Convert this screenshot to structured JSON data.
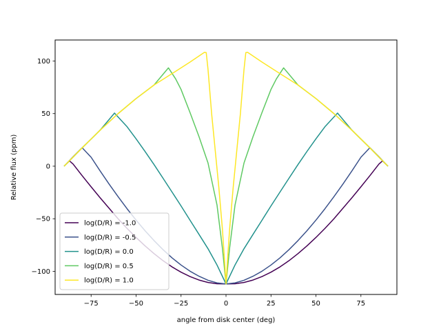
{
  "chart_data": {
    "type": "line",
    "title": "",
    "xlabel": "angle from disk center (deg)",
    "ylabel": "Relative flux (ppm)",
    "xlim": [
      -95,
      95
    ],
    "ylim": [
      -122,
      120
    ],
    "xticks": [
      -75,
      -50,
      -25,
      0,
      25,
      50,
      75
    ],
    "xtick_labels": [
      "−75",
      "−50",
      "−25",
      "0",
      "25",
      "50",
      "75"
    ],
    "yticks": [
      -100,
      -50,
      0,
      50,
      100
    ],
    "ytick_labels": [
      "−100",
      "−50",
      "0",
      "50",
      "100"
    ],
    "grid": false,
    "legend_position": "lower-left",
    "series": [
      {
        "name": "log(D/R) = -1.0",
        "color": "#440154",
        "x": [
          -90,
          -87,
          -85,
          -80,
          -75,
          -70,
          -65,
          -60,
          -55,
          -50,
          -45,
          -40,
          -35,
          -30,
          -25,
          -20,
          -15,
          -10,
          -5,
          0,
          5,
          10,
          15,
          20,
          25,
          30,
          35,
          40,
          45,
          50,
          55,
          60,
          65,
          70,
          75,
          80,
          85,
          87,
          90
        ],
        "y": [
          0,
          5,
          2,
          -9,
          -19.6,
          -30,
          -40,
          -50,
          -59.2,
          -67.8,
          -75.8,
          -83.2,
          -89.9,
          -95.8,
          -100.8,
          -105,
          -108.3,
          -110.6,
          -111.8,
          -112,
          -111.8,
          -110.6,
          -108.3,
          -105,
          -100.8,
          -95.8,
          -89.9,
          -83.2,
          -75.8,
          -67.8,
          -59.2,
          -50,
          -40,
          -30,
          -19.6,
          -9,
          2,
          5,
          0
        ]
      },
      {
        "name": "log(D/R) = -0.5",
        "color": "#3b528b",
        "x": [
          -90,
          -85,
          -80,
          -75,
          -70,
          -65,
          -60,
          -55,
          -50,
          -45,
          -40,
          -35,
          -30,
          -25,
          -20,
          -15,
          -10,
          -5,
          0,
          5,
          10,
          15,
          20,
          25,
          30,
          35,
          40,
          45,
          50,
          55,
          60,
          65,
          70,
          75,
          80,
          85,
          90
        ],
        "y": [
          0,
          9,
          17.6,
          8.5,
          -4.5,
          -17,
          -29,
          -40.5,
          -51.3,
          -61.4,
          -70.8,
          -79.4,
          -87.2,
          -94,
          -99.9,
          -104.7,
          -108.5,
          -111,
          -112,
          -111,
          -108.5,
          -104.7,
          -99.9,
          -94,
          -87.2,
          -79.4,
          -70.8,
          -61.4,
          -51.3,
          -40.5,
          -29,
          -17,
          -4.5,
          8.5,
          17.6,
          9,
          0
        ]
      },
      {
        "name": "log(D/R) = 0.0",
        "color": "#21918c",
        "x": [
          -90,
          -80,
          -70,
          -62,
          -55,
          -50,
          -45,
          -40,
          -35,
          -30,
          -25,
          -20,
          -15,
          -10,
          -5,
          0,
          5,
          10,
          15,
          20,
          25,
          30,
          35,
          40,
          45,
          50,
          55,
          62,
          70,
          80,
          90
        ],
        "y": [
          0,
          17.4,
          34.2,
          50.5,
          37.5,
          26,
          14,
          1.5,
          -11.5,
          -24.6,
          -37.8,
          -51.4,
          -64.9,
          -78.5,
          -94,
          -112,
          -94,
          -78.5,
          -64.9,
          -51.4,
          -37.8,
          -24.6,
          -11.5,
          1.5,
          14,
          26,
          37.5,
          50.5,
          34.2,
          17.4,
          0
        ]
      },
      {
        "name": "log(D/R) = 0.5",
        "color": "#5ec962",
        "x": [
          -90,
          -80,
          -70,
          -60,
          -50,
          -40,
          -32,
          -28,
          -25,
          -20,
          -15,
          -10,
          -5,
          -2,
          0,
          2,
          5,
          10,
          15,
          20,
          25,
          28,
          32,
          40,
          50,
          60,
          70,
          80,
          90
        ],
        "y": [
          0,
          17.4,
          34.2,
          50,
          64.3,
          77.2,
          93.5,
          83,
          73,
          51,
          28,
          3,
          -37,
          -78,
          -112,
          -78,
          -37,
          3,
          28,
          51,
          73,
          83,
          93.5,
          77.2,
          64.3,
          50,
          34.2,
          17.4,
          0
        ],
        "note_visible_curve": "fourth curve"
      },
      {
        "name": "log(D/R) = 1.0",
        "color": "#fde725",
        "x": [
          -90,
          -80,
          -70,
          -60,
          -50,
          -40,
          -30,
          -20,
          -12,
          -11,
          -10,
          -8,
          -6,
          -4,
          -2,
          -1,
          0,
          1,
          2,
          4,
          6,
          8,
          10,
          11,
          12,
          20,
          30,
          40,
          50,
          60,
          70,
          80,
          90
        ],
        "y": [
          0,
          17.4,
          34.2,
          50,
          64.3,
          77.2,
          88,
          99,
          108.3,
          108,
          92,
          50,
          15,
          -20,
          -60,
          -85,
          -112,
          -85,
          -60,
          -20,
          15,
          50,
          92,
          108,
          108.3,
          99,
          88,
          77.2,
          64.3,
          50,
          34.2,
          17.4,
          0
        ]
      }
    ]
  }
}
